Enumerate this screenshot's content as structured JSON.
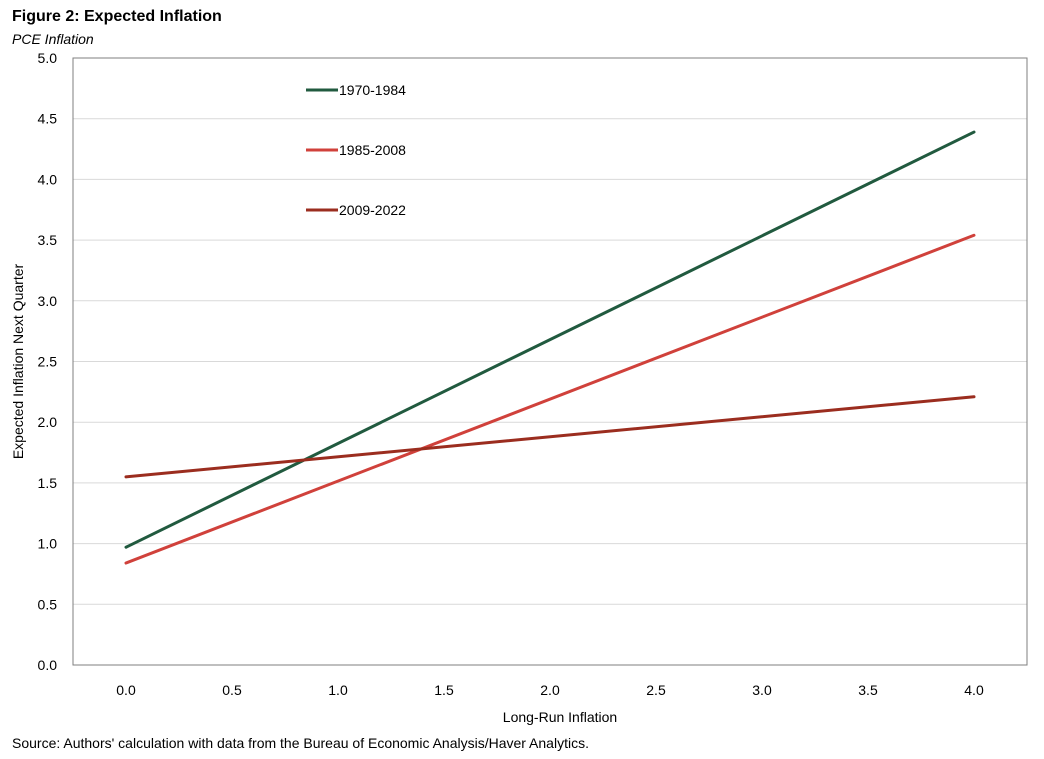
{
  "header": {
    "title": "Figure 2: Expected Inflation",
    "subtitle": "PCE Inflation"
  },
  "footer": {
    "source": "Source: Authors' calculation with data from the Bureau of Economic Analysis/Haver Analytics."
  },
  "chart_data": {
    "type": "line",
    "title": "Figure 2: Expected Inflation",
    "subtitle": "PCE Inflation",
    "xlabel": "Long-Run Inflation",
    "ylabel": "Expected Inflation Next Quarter",
    "xlim": [
      -0.25,
      4.25
    ],
    "ylim": [
      0,
      5
    ],
    "xticks": [
      "0.0",
      "0.5",
      "1.0",
      "1.5",
      "2.0",
      "2.5",
      "3.0",
      "3.5",
      "4.0"
    ],
    "yticks": [
      "0.0",
      "0.5",
      "1.0",
      "1.5",
      "2.0",
      "2.5",
      "3.0",
      "3.5",
      "4.0",
      "4.5",
      "5.0"
    ],
    "grid": "horizontal",
    "legend_position": "top-left",
    "series": [
      {
        "name": "1970-1984",
        "color": "#215a3f",
        "x": [
          0.0,
          4.0
        ],
        "y": [
          0.97,
          4.39
        ]
      },
      {
        "name": "1985-2008",
        "color": "#d0413b",
        "x": [
          0.0,
          4.0
        ],
        "y": [
          0.84,
          3.54
        ]
      },
      {
        "name": "2009-2022",
        "color": "#9b2d1f",
        "x": [
          0.0,
          4.0
        ],
        "y": [
          1.55,
          2.21
        ]
      }
    ]
  }
}
